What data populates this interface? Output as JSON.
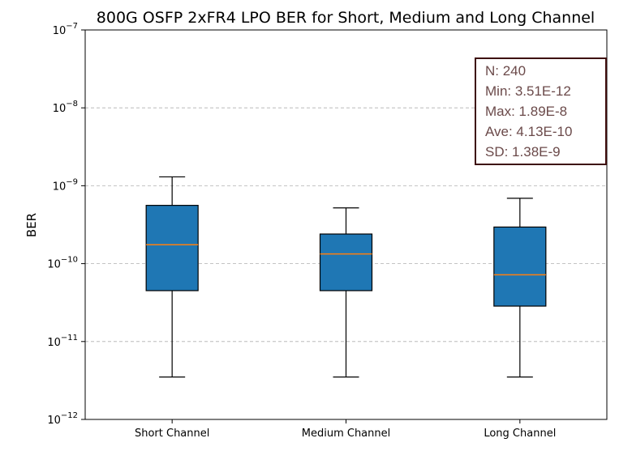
{
  "chart_data": {
    "type": "box",
    "title": "800G OSFP 2xFR4 LPO BER for Short, Medium and Long Channel",
    "xlabel": "",
    "ylabel": "BER",
    "yscale": "log",
    "ylim": [
      1e-12,
      1e-07
    ],
    "yticks": [
      {
        "value": 1e-12,
        "base": "10",
        "exp": "−12"
      },
      {
        "value": 1e-11,
        "base": "10",
        "exp": "−11"
      },
      {
        "value": 1e-10,
        "base": "10",
        "exp": "−10"
      },
      {
        "value": 1e-09,
        "base": "10",
        "exp": "−9"
      },
      {
        "value": 1e-08,
        "base": "10",
        "exp": "−8"
      },
      {
        "value": 1e-07,
        "base": "10",
        "exp": "−7"
      }
    ],
    "grid": true,
    "categories": [
      "Short Channel",
      "Medium Channel",
      "Long Channel"
    ],
    "boxes": [
      {
        "whisker_low": 3.5e-12,
        "q1": 4.5e-11,
        "median": 1.75e-10,
        "q3": 5.6e-10,
        "whisker_high": 1.3e-09
      },
      {
        "whisker_low": 3.5e-12,
        "q1": 4.5e-11,
        "median": 1.33e-10,
        "q3": 2.4e-10,
        "whisker_high": 5.2e-10
      },
      {
        "whisker_low": 3.5e-12,
        "q1": 2.85e-11,
        "median": 7.2e-11,
        "q3": 2.95e-10,
        "whisker_high": 6.9e-10
      }
    ],
    "colors": {
      "box_fill": "#1f77b4",
      "box_edge": "#000000",
      "median": "#ff7f0e",
      "grid": "#b0b0b0",
      "stats_border": "#3d0c0c",
      "stats_text": "#6b4a4a"
    },
    "annotation": {
      "placement": "top-right",
      "lines": [
        "N: 240",
        "Min: 3.51E-12",
        "Max: 1.89E-8",
        "Ave: 4.13E-10",
        "SD: 1.38E-9"
      ]
    }
  }
}
